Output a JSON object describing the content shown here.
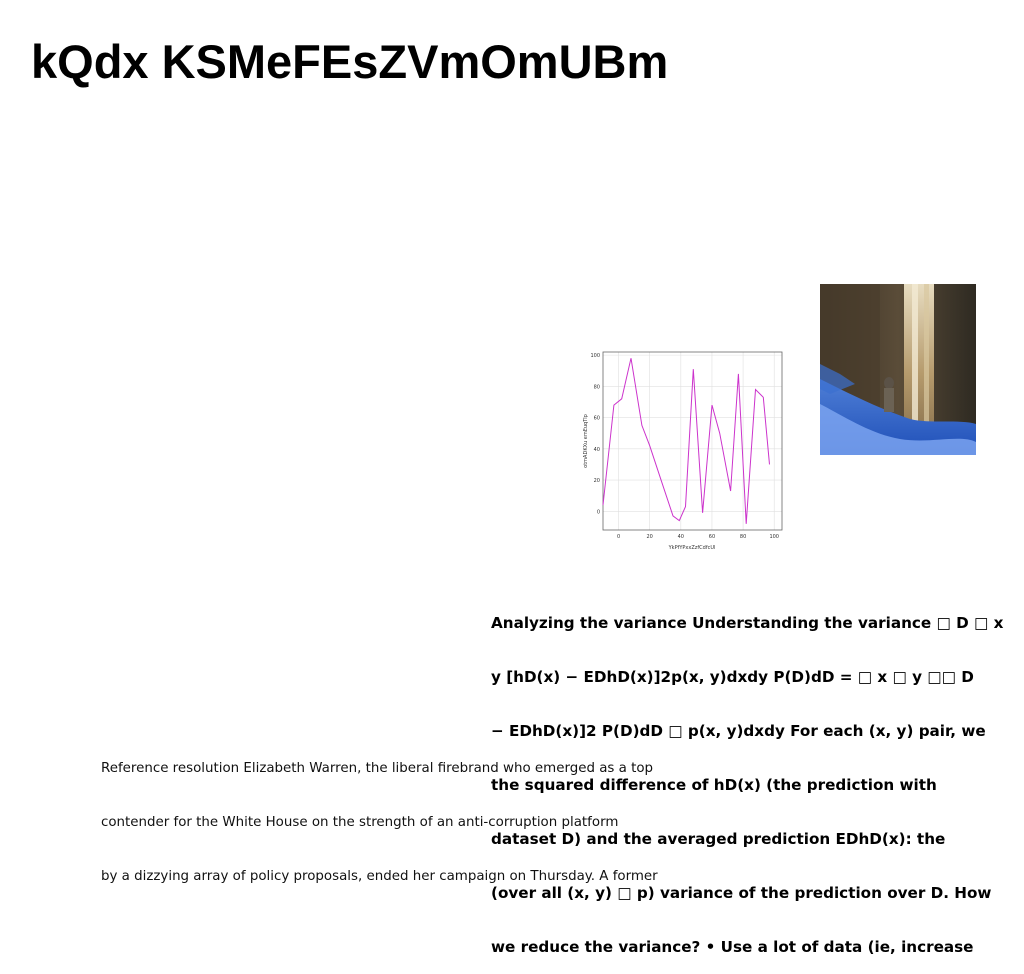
{
  "heading": "kQdx KSMeFEsZVmOmUBm",
  "chart_data": {
    "type": "line",
    "xlabel": "YkPfYPxxZzfCdfcUl",
    "ylabel": "otmADKXu emEuqTlp",
    "xlim": [
      -10,
      105
    ],
    "ylim": [
      -12,
      102
    ],
    "xticks": [
      0,
      20,
      40,
      60,
      80,
      100
    ],
    "yticks": [
      0,
      20,
      40,
      60,
      80,
      100
    ],
    "grid": true,
    "series": [
      {
        "color": "#cc33cc",
        "x": [
          -10,
          -3,
          2,
          8,
          15,
          20,
          28,
          35,
          39,
          43,
          48,
          54,
          60,
          65,
          72,
          77,
          82,
          88,
          93,
          97
        ],
        "y": [
          4,
          68,
          72,
          98,
          55,
          42,
          18,
          -3,
          -6,
          3,
          91,
          -1,
          68,
          50,
          13,
          88,
          -8,
          78,
          73,
          30
        ]
      }
    ]
  },
  "photo": {
    "icon": "waterfall-photo"
  },
  "analysis_lines": [
    "Analyzing the variance Understanding the variance □ D □ x",
    "y [hD(x) − EDhD(x)]2p(x, y)dxdy P(D)dD = □ x □ y □□ D",
    "− EDhD(x)]2 P(D)dD □ p(x, y)dxdy For each (x, y) pair, we",
    "the squared difference of hD(x) (the prediction with",
    "dataset D) and the averaged prediction EDhD(x): the",
    "(over all (x, y) □ p) variance of the prediction over D. How",
    "we reduce the variance? • Use a lot of data (ie, increase"
  ],
  "caption_lines": [
    "Reference resolution Elizabeth Warren, the liberal firebrand who emerged as a top",
    "contender for the White House on the strength of an anti-corruption platform",
    "by a dizzying array of policy proposals, ended her campaign on Thursday. A former"
  ]
}
